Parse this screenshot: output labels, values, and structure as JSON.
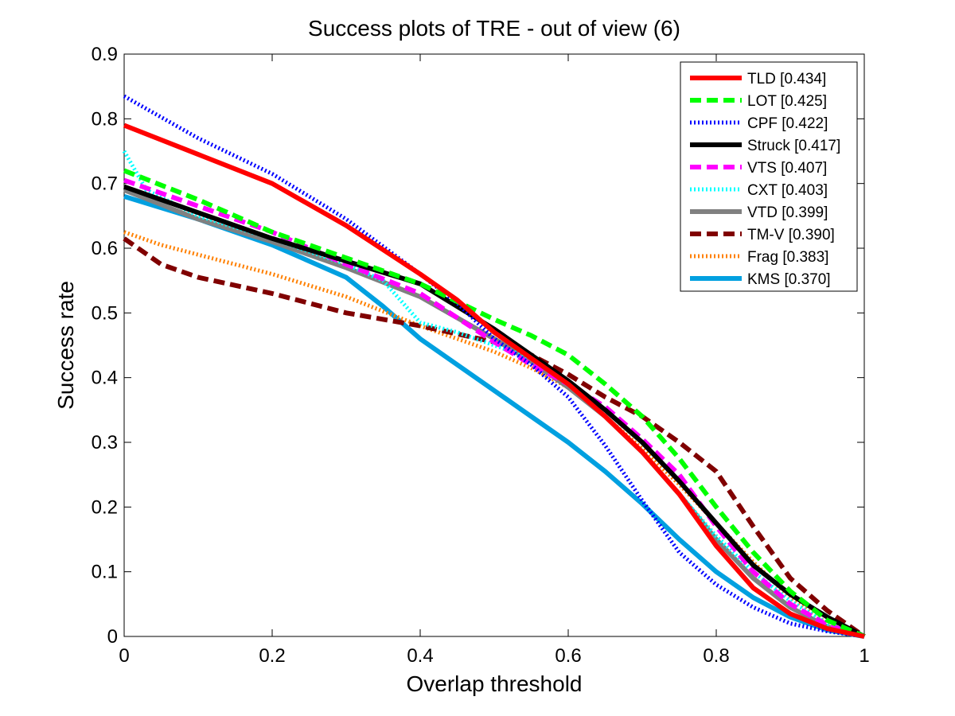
{
  "chart_data": {
    "type": "line",
    "title": "Success plots of TRE - out of view (6)",
    "xlabel": "Overlap threshold",
    "ylabel": "Success rate",
    "xlim": [
      0,
      1
    ],
    "ylim": [
      0,
      0.9
    ],
    "xticks": [
      "0",
      "0.2",
      "0.4",
      "0.6",
      "0.8",
      "1"
    ],
    "yticks": [
      "0",
      "0.1",
      "0.2",
      "0.3",
      "0.4",
      "0.5",
      "0.6",
      "0.7",
      "0.8",
      "0.9"
    ],
    "grid": false,
    "legend_position": "top-right",
    "series": [
      {
        "name": "TLD [0.434]",
        "color": "#ff0000",
        "style": "solid",
        "width": 6,
        "x": [
          0,
          0.1,
          0.2,
          0.3,
          0.4,
          0.45,
          0.5,
          0.55,
          0.6,
          0.65,
          0.7,
          0.75,
          0.8,
          0.85,
          0.9,
          0.95,
          1.0
        ],
        "y": [
          0.79,
          0.745,
          0.7,
          0.635,
          0.56,
          0.52,
          0.47,
          0.43,
          0.39,
          0.34,
          0.285,
          0.22,
          0.14,
          0.075,
          0.035,
          0.012,
          0.0
        ]
      },
      {
        "name": "LOT [0.425]",
        "color": "#00ff00",
        "style": "dashed",
        "width": 6,
        "x": [
          0,
          0.1,
          0.2,
          0.3,
          0.4,
          0.5,
          0.55,
          0.6,
          0.65,
          0.7,
          0.75,
          0.8,
          0.85,
          0.9,
          0.95,
          1.0
        ],
        "y": [
          0.72,
          0.675,
          0.625,
          0.585,
          0.545,
          0.49,
          0.465,
          0.435,
          0.39,
          0.34,
          0.275,
          0.2,
          0.13,
          0.07,
          0.025,
          0.0
        ]
      },
      {
        "name": "CPF [0.422]",
        "color": "#0000ff",
        "style": "dotted",
        "width": 5,
        "x": [
          0,
          0.1,
          0.2,
          0.3,
          0.4,
          0.45,
          0.5,
          0.55,
          0.6,
          0.65,
          0.7,
          0.75,
          0.8,
          0.85,
          0.9,
          0.95,
          1.0
        ],
        "y": [
          0.835,
          0.77,
          0.715,
          0.645,
          0.56,
          0.515,
          0.46,
          0.42,
          0.37,
          0.295,
          0.21,
          0.13,
          0.08,
          0.045,
          0.02,
          0.008,
          0.0
        ]
      },
      {
        "name": "Struck [0.417]",
        "color": "#000000",
        "style": "solid",
        "width": 6,
        "x": [
          0,
          0.1,
          0.2,
          0.3,
          0.4,
          0.45,
          0.5,
          0.55,
          0.6,
          0.65,
          0.7,
          0.75,
          0.8,
          0.85,
          0.9,
          0.95,
          1.0
        ],
        "y": [
          0.695,
          0.655,
          0.615,
          0.58,
          0.545,
          0.51,
          0.475,
          0.435,
          0.395,
          0.35,
          0.3,
          0.24,
          0.175,
          0.11,
          0.065,
          0.03,
          0.0
        ]
      },
      {
        "name": "VTS [0.407]",
        "color": "#ff00ff",
        "style": "dashed",
        "width": 6,
        "x": [
          0,
          0.1,
          0.2,
          0.3,
          0.4,
          0.5,
          0.55,
          0.6,
          0.65,
          0.7,
          0.75,
          0.8,
          0.85,
          0.9,
          0.95,
          1.0
        ],
        "y": [
          0.705,
          0.665,
          0.625,
          0.575,
          0.53,
          0.455,
          0.42,
          0.39,
          0.355,
          0.305,
          0.25,
          0.17,
          0.1,
          0.05,
          0.018,
          0.0
        ]
      },
      {
        "name": "CXT [0.403]",
        "color": "#00ffff",
        "style": "dotted",
        "width": 5,
        "x": [
          0,
          0.03,
          0.1,
          0.2,
          0.3,
          0.35,
          0.4,
          0.45,
          0.5,
          0.55,
          0.6,
          0.65,
          0.7,
          0.75,
          0.8,
          0.85,
          0.9,
          0.95,
          1.0
        ],
        "y": [
          0.75,
          0.69,
          0.65,
          0.615,
          0.575,
          0.55,
          0.485,
          0.47,
          0.45,
          0.43,
          0.39,
          0.34,
          0.285,
          0.22,
          0.155,
          0.1,
          0.055,
          0.02,
          0.0
        ]
      },
      {
        "name": "VTD [0.399]",
        "color": "#808080",
        "style": "solid",
        "width": 6,
        "x": [
          0,
          0.1,
          0.2,
          0.3,
          0.4,
          0.5,
          0.55,
          0.6,
          0.65,
          0.7,
          0.75,
          0.8,
          0.85,
          0.9,
          0.95,
          1.0
        ],
        "y": [
          0.69,
          0.645,
          0.61,
          0.57,
          0.525,
          0.46,
          0.425,
          0.385,
          0.34,
          0.285,
          0.22,
          0.15,
          0.09,
          0.045,
          0.015,
          0.0
        ]
      },
      {
        "name": "TM-V [0.390]",
        "color": "#800000",
        "style": "dashed",
        "width": 6,
        "x": [
          0,
          0.05,
          0.1,
          0.2,
          0.3,
          0.4,
          0.5,
          0.55,
          0.6,
          0.65,
          0.7,
          0.75,
          0.8,
          0.85,
          0.9,
          0.95,
          1.0
        ],
        "y": [
          0.615,
          0.575,
          0.555,
          0.53,
          0.5,
          0.48,
          0.455,
          0.435,
          0.405,
          0.37,
          0.34,
          0.3,
          0.255,
          0.17,
          0.09,
          0.04,
          0.0
        ]
      },
      {
        "name": "Frag [0.383]",
        "color": "#ff8000",
        "style": "dotted",
        "width": 5,
        "x": [
          0,
          0.05,
          0.1,
          0.2,
          0.3,
          0.4,
          0.5,
          0.55,
          0.6,
          0.65,
          0.7,
          0.75,
          0.8,
          0.85,
          0.9,
          0.95,
          1.0
        ],
        "y": [
          0.625,
          0.605,
          0.59,
          0.56,
          0.525,
          0.48,
          0.44,
          0.415,
          0.385,
          0.34,
          0.29,
          0.235,
          0.175,
          0.115,
          0.06,
          0.02,
          0.0
        ]
      },
      {
        "name": "KMS [0.370]",
        "color": "#00a0e0",
        "style": "solid",
        "width": 6,
        "x": [
          0,
          0.1,
          0.2,
          0.3,
          0.35,
          0.4,
          0.45,
          0.5,
          0.55,
          0.6,
          0.65,
          0.7,
          0.75,
          0.8,
          0.85,
          0.9,
          0.95,
          1.0
        ],
        "y": [
          0.68,
          0.645,
          0.605,
          0.555,
          0.51,
          0.46,
          0.42,
          0.38,
          0.34,
          0.3,
          0.255,
          0.205,
          0.15,
          0.1,
          0.06,
          0.03,
          0.01,
          0.0
        ]
      }
    ]
  }
}
